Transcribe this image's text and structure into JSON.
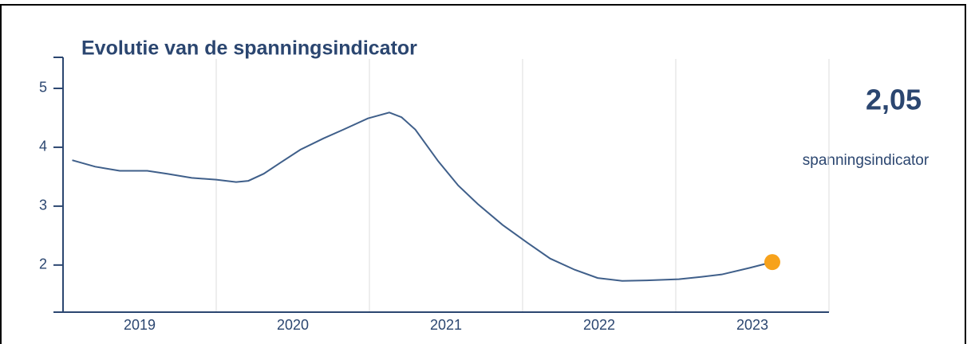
{
  "chart_data": {
    "type": "line",
    "title": "Evolutie van de spanningsindicator",
    "x": [
      2019.06,
      2019.21,
      2019.37,
      2019.55,
      2019.68,
      2019.84,
      2020.0,
      2020.13,
      2020.21,
      2020.31,
      2020.42,
      2020.55,
      2020.7,
      2020.83,
      2020.99,
      2021.13,
      2021.21,
      2021.3,
      2021.45,
      2021.58,
      2021.71,
      2021.87,
      2022.03,
      2022.18,
      2022.34,
      2022.49,
      2022.65,
      2022.81,
      2023.02,
      2023.17,
      2023.3,
      2023.48,
      2023.63
    ],
    "series": [
      {
        "name": "spanningsindicator",
        "color": "#3f5f8a",
        "values": [
          3.78,
          3.67,
          3.6,
          3.6,
          3.55,
          3.48,
          3.45,
          3.41,
          3.43,
          3.55,
          3.74,
          3.96,
          4.15,
          4.3,
          4.49,
          4.59,
          4.51,
          4.3,
          3.76,
          3.35,
          3.03,
          2.68,
          2.38,
          2.11,
          1.92,
          1.78,
          1.73,
          1.74,
          1.76,
          1.8,
          1.84,
          1.95,
          2.05
        ]
      }
    ],
    "marker_color": "#f7a21b",
    "highlight": {
      "value": 2.05,
      "label": "2,05",
      "caption": "spanningsindicator"
    },
    "xlim": [
      2019,
      2024
    ],
    "xticks": [
      {
        "value": 2019.5,
        "label": "2019"
      },
      {
        "value": 2020.5,
        "label": "2020"
      },
      {
        "value": 2021.5,
        "label": "2021"
      },
      {
        "value": 2022.5,
        "label": "2022"
      },
      {
        "value": 2023.5,
        "label": "2023"
      }
    ],
    "xgrid": [
      2020,
      2021,
      2022,
      2023,
      2024
    ],
    "ylim": [
      1.2,
      5.5
    ],
    "yticks": [
      2,
      3,
      4,
      5
    ],
    "grid": true
  }
}
